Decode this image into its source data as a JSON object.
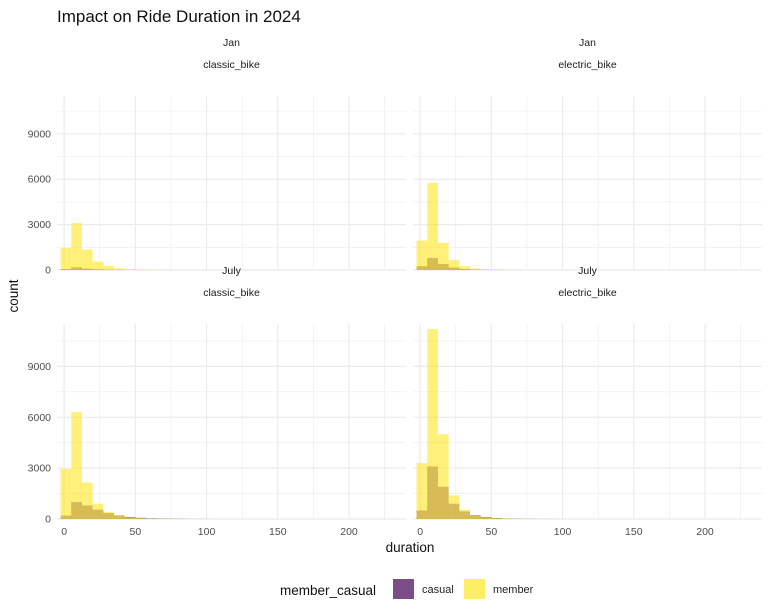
{
  "chart_data": {
    "type": "bar",
    "title": "Impact on Ride Duration in 2024",
    "xlabel": "duration",
    "ylabel": "count",
    "xlim": [
      -5,
      240
    ],
    "ylim": [
      0,
      11500
    ],
    "x_ticks": [
      "0",
      "50",
      "100",
      "150",
      "200"
    ],
    "x_tick_values": [
      0,
      50,
      100,
      150,
      200
    ],
    "y_ticks": [
      "0",
      "3000",
      "6000",
      "9000"
    ],
    "y_tick_values": [
      0,
      3000,
      6000,
      9000
    ],
    "grid": true,
    "legend": {
      "title": "member_casual",
      "position": "bottom",
      "entries": [
        "casual",
        "member"
      ]
    },
    "bin_starts": [
      -2.5,
      5,
      12.5,
      20,
      27.5,
      35,
      42.5,
      50,
      57.5,
      65,
      72.5,
      80,
      87.5,
      95
    ],
    "bin_width": 7.5,
    "colors": {
      "casual": "#440154",
      "member": "#FDE725",
      "grid": "#ebebeb"
    },
    "panels": [
      {
        "month": "Jan",
        "rideable_type": "classic_bike",
        "series": [
          {
            "name": "casual",
            "values": [
              60,
              180,
              90,
              50,
              25,
              15,
              8,
              5,
              3,
              2,
              1,
              1,
              0,
              0
            ]
          },
          {
            "name": "member",
            "values": [
              1450,
              3100,
              1350,
              550,
              260,
              110,
              55,
              30,
              15,
              10,
              5,
              3,
              2,
              0
            ]
          }
        ]
      },
      {
        "month": "Jan",
        "rideable_type": "electric_bike",
        "series": [
          {
            "name": "casual",
            "values": [
              250,
              800,
              400,
              160,
              70,
              30,
              15,
              8,
              4,
              2,
              1,
              1,
              0,
              0
            ]
          },
          {
            "name": "member",
            "values": [
              1950,
              5750,
              1800,
              650,
              250,
              100,
              45,
              20,
              10,
              5,
              3,
              2,
              1,
              0
            ]
          }
        ]
      },
      {
        "month": "July",
        "rideable_type": "classic_bike",
        "series": [
          {
            "name": "casual",
            "values": [
              200,
              1000,
              800,
              550,
              350,
              200,
              120,
              70,
              40,
              25,
              15,
              10,
              5,
              3
            ]
          },
          {
            "name": "member",
            "values": [
              2950,
              6300,
              2150,
              900,
              400,
              180,
              90,
              45,
              25,
              15,
              8,
              5,
              3,
              2
            ]
          }
        ]
      },
      {
        "month": "July",
        "rideable_type": "electric_bike",
        "series": [
          {
            "name": "casual",
            "values": [
              500,
              3100,
              1900,
              900,
              450,
              230,
              120,
              60,
              30,
              18,
              10,
              6,
              3,
              2
            ]
          },
          {
            "name": "member",
            "values": [
              3300,
              11200,
              5000,
              1400,
              550,
              220,
              100,
              45,
              25,
              12,
              6,
              3,
              2,
              1
            ]
          }
        ]
      }
    ]
  }
}
